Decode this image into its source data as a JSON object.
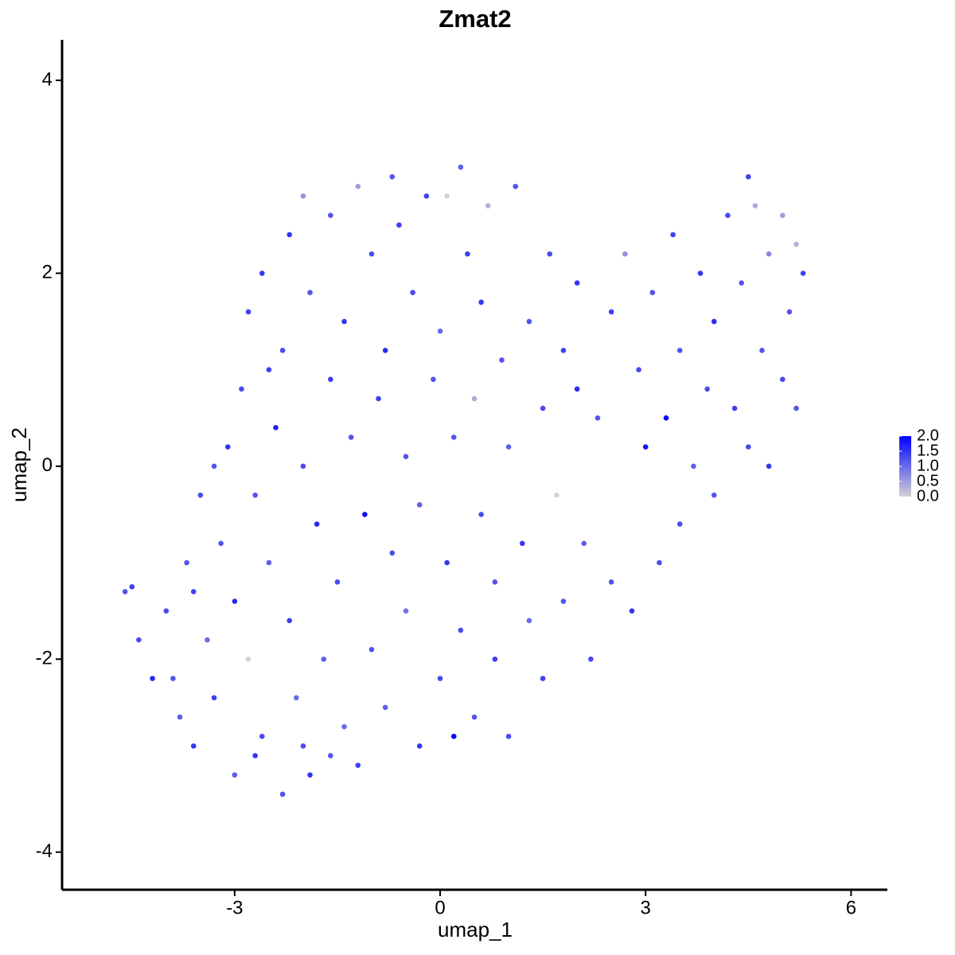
{
  "chart_data": {
    "type": "scatter",
    "title": "Zmat2",
    "x_label": "umap_1",
    "y_label": "umap_2",
    "xlim": [
      -5.52,
      6.53
    ],
    "ylim": [
      -4.39,
      4.42
    ],
    "xticks": [
      -3,
      0,
      3,
      6
    ],
    "yticks": [
      -4,
      -2,
      0,
      2,
      4
    ],
    "color_scale": [
      "#d3d3d3",
      "#0000ff"
    ],
    "color_lim": [
      0,
      2
    ],
    "color_ticks": [
      {
        "value": 0,
        "label": "0.0"
      },
      0.5,
      {
        "value": 1,
        "label": "1.0"
      },
      1.5,
      {
        "value": 2,
        "label": "2.0"
      }
    ],
    "x": [
      -4.6,
      -4.5,
      -4.2,
      -4.0,
      -3.8,
      -3.7,
      -3.6,
      -3.5,
      -3.4,
      -3.3,
      -3.2,
      -3.1,
      -3.0,
      -3.0,
      -2.9,
      -2.8,
      -2.8,
      -2.7,
      -2.6,
      -2.6,
      -2.5,
      -2.4,
      -2.3,
      -2.3,
      -2.2,
      -2.2,
      -2.1,
      -2.0,
      -2.0,
      -1.9,
      -1.9,
      -1.8,
      -1.7,
      -1.6,
      -1.6,
      -1.5,
      -1.4,
      -1.4,
      -1.3,
      -1.2,
      -1.2,
      -1.1,
      -1.0,
      -1.0,
      -0.9,
      -0.8,
      -0.8,
      -0.7,
      -0.7,
      -0.6,
      -0.5,
      -0.5,
      -0.4,
      -0.3,
      -0.3,
      -0.2,
      -0.1,
      0.0,
      0.0,
      0.1,
      0.1,
      0.2,
      0.2,
      0.3,
      0.3,
      0.4,
      0.5,
      0.5,
      0.6,
      0.6,
      0.7,
      0.8,
      0.8,
      0.9,
      1.0,
      1.0,
      1.1,
      1.2,
      1.3,
      1.3,
      1.5,
      1.5,
      1.6,
      1.7,
      1.8,
      1.8,
      2.0,
      2.0,
      2.1,
      2.2,
      2.3,
      2.5,
      2.5,
      2.7,
      2.8,
      2.9,
      3.0,
      3.1,
      3.2,
      3.3,
      3.4,
      3.5,
      3.5,
      3.7,
      3.8,
      3.9,
      4.0,
      4.0,
      4.2,
      4.3,
      4.4,
      4.5,
      4.5,
      4.6,
      4.7,
      4.8,
      4.8,
      5.0,
      5.0,
      5.1,
      5.2,
      5.3,
      5.2,
      -4.4,
      -3.9,
      -3.6,
      -3.3,
      -2.7,
      -2.0,
      -1.6,
      -2.5
    ],
    "values": [
      -1.3,
      -1.25,
      -2.2,
      -1.5,
      -2.6,
      -1.0,
      -2.9,
      -0.3,
      -1.8,
      -2.4,
      -0.8,
      0.2,
      -3.2,
      -1.4,
      0.8,
      -2.0,
      1.6,
      -0.3,
      2.0,
      -2.8,
      -1.0,
      0.4,
      -3.4,
      1.2,
      -1.6,
      2.4,
      -2.4,
      0.0,
      2.8,
      -3.2,
      1.8,
      -0.6,
      -2.0,
      0.9,
      2.6,
      -1.2,
      -2.7,
      1.5,
      0.3,
      2.9,
      -3.1,
      -0.5,
      -1.9,
      2.2,
      0.7,
      -2.5,
      1.2,
      3.0,
      -0.9,
      2.5,
      -1.5,
      0.1,
      1.8,
      -2.9,
      -0.4,
      2.8,
      0.9,
      -2.2,
      1.4,
      2.8,
      -1.0,
      -2.8,
      0.3,
      3.1,
      -1.7,
      2.2,
      0.7,
      -2.6,
      -0.5,
      1.7,
      2.7,
      -1.2,
      -2.0,
      1.1,
      0.2,
      -2.8,
      2.9,
      -0.8,
      1.5,
      -1.6,
      0.6,
      -2.2,
      2.2,
      -0.3,
      1.2,
      -1.4,
      0.8,
      1.9,
      -0.8,
      -2.0,
      0.5,
      1.6,
      -1.2,
      2.2,
      -1.5,
      1.0,
      0.2,
      1.8,
      -1.0,
      0.5,
      2.4,
      1.2,
      -0.6,
      0.0,
      2.0,
      0.8,
      -0.3,
      1.5,
      2.6,
      0.6,
      1.9,
      3.0,
      0.2,
      2.7,
      1.2,
      0.0,
      2.2,
      0.9,
      2.6,
      1.6,
      2.3,
      2.0,
      0.6,
      -1.8,
      -2.2,
      -1.3,
      0.0,
      -3.0,
      -2.9,
      -3.0,
      1.0
    ],
    "color_values": [
      1.2,
      1.4,
      1.6,
      1.3,
      1.1,
      1.2,
      1.5,
      1.3,
      1.0,
      1.4,
      1.2,
      1.5,
      1.1,
      1.6,
      1.3,
      0.0,
      1.4,
      1.2,
      1.5,
      1.3,
      1.1,
      1.7,
      1.2,
      1.3,
      1.4,
      1.5,
      1.0,
      1.3,
      0.6,
      1.5,
      1.2,
      1.6,
      1.1,
      1.4,
      1.2,
      1.3,
      1.0,
      1.5,
      1.2,
      0.5,
      1.4,
      1.9,
      1.2,
      1.3,
      1.4,
      1.1,
      1.6,
      1.2,
      1.3,
      1.4,
      0.9,
      1.2,
      1.3,
      1.5,
      1.1,
      1.4,
      1.2,
      1.3,
      1.0,
      0.0,
      1.5,
      2.0,
      1.2,
      1.1,
      1.3,
      1.4,
      0.4,
      1.2,
      1.3,
      1.5,
      0.3,
      1.2,
      1.4,
      1.2,
      1.1,
      1.3,
      1.2,
      1.5,
      1.2,
      1.0,
      1.3,
      1.4,
      1.3,
      0.0,
      1.4,
      1.2,
      1.6,
      1.5,
      1.1,
      1.3,
      1.2,
      1.4,
      1.2,
      0.6,
      1.5,
      1.3,
      1.8,
      1.2,
      1.3,
      2.0,
      1.4,
      1.2,
      1.3,
      1.1,
      1.5,
      1.3,
      1.2,
      1.6,
      1.3,
      1.4,
      1.2,
      1.4,
      1.3,
      0.4,
      1.2,
      1.5,
      0.7,
      1.3,
      0.5,
      1.2,
      0.3,
      1.4,
      1.2,
      1.3,
      1.2,
      1.4,
      1.2,
      1.5,
      1.3,
      1.2,
      1.4
    ]
  }
}
